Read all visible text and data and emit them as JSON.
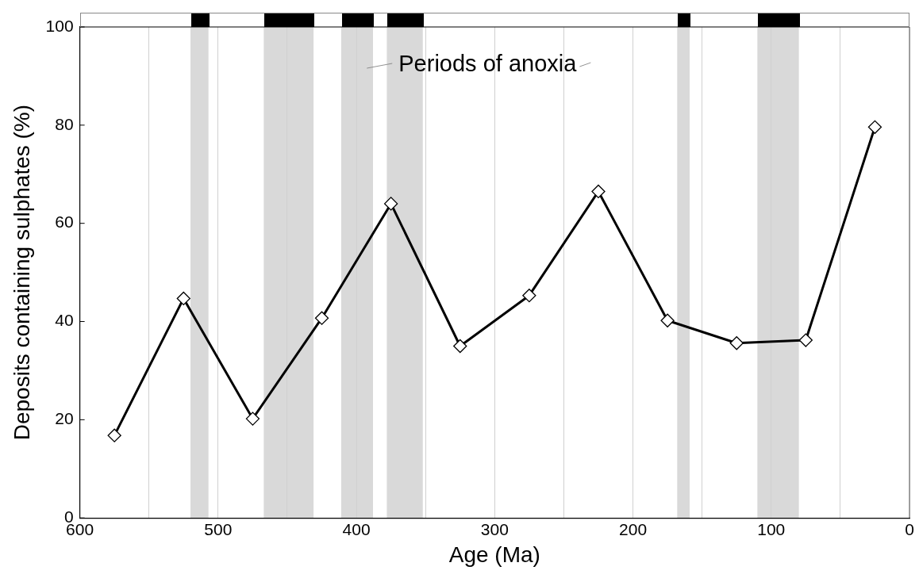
{
  "chart_data": {
    "type": "line",
    "xlabel": "Age (Ma)",
    "ylabel": "Deposits containing sulphates (%)",
    "x": [
      575,
      525,
      475,
      425,
      375,
      325,
      275,
      225,
      175,
      125,
      75,
      25
    ],
    "series": [
      {
        "color": "#000000",
        "values": [
          16.8,
          44.7,
          20.2,
          40.7,
          64,
          35,
          45.3,
          66.5,
          40.2,
          35.6,
          36.2,
          79.6
        ]
      }
    ],
    "xlim": [
      600,
      0
    ],
    "xticks": [
      600,
      {
        "value": 550,
        "label": null
      },
      500,
      {
        "value": 450,
        "label": null
      },
      400,
      {
        "value": 350,
        "label": null
      },
      300,
      {
        "value": 250,
        "label": null
      },
      200,
      {
        "value": 150,
        "label": null
      },
      100,
      {
        "value": 50,
        "label": null
      },
      0
    ],
    "ylim": [
      0,
      100
    ],
    "yticks": [
      0,
      20,
      40,
      60,
      80,
      100
    ],
    "grid": "x",
    "marker": "diamond",
    "line_style": "solid",
    "bands": [
      {
        "axis": "x",
        "from": 520,
        "to": 507,
        "color": "#d9d9d9"
      },
      {
        "axis": "x",
        "from": 467,
        "to": 431,
        "color": "#d9d9d9"
      },
      {
        "axis": "x",
        "from": 411,
        "to": 388,
        "color": "#d9d9d9"
      },
      {
        "axis": "x",
        "from": 378,
        "to": 352,
        "color": "#d9d9d9"
      },
      {
        "axis": "x",
        "from": 168,
        "to": 159,
        "color": "#d9d9d9"
      },
      {
        "axis": "x",
        "from": 110,
        "to": 80,
        "color": "#d9d9d9"
      }
    ],
    "annotations": [
      "Periods of anoxia"
    ]
  }
}
